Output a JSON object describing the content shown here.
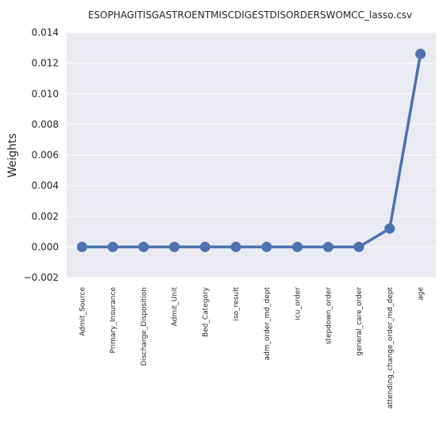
{
  "chart_data": {
    "type": "line",
    "title": "ESOPHAGITISGASTROENTMISCDIGESTDISORDERSWOMCC_lasso.csv",
    "xlabel": "",
    "ylabel": "Weights",
    "categories": [
      "Admit_Source",
      "Primary_Insurance",
      "Discharge_Disposition",
      "Admit_Unit",
      "Bed_Category",
      "iso_result",
      "adm_order_md_dept",
      "icu_order",
      "stepdown_order",
      "general_care_order",
      "attending_change_order_md_dept",
      "age"
    ],
    "values": [
      0.0,
      0.0,
      0.0,
      0.0,
      0.0,
      0.0,
      0.0,
      0.0,
      0.0,
      0.0,
      0.0012,
      0.0126
    ],
    "ylim": [
      -0.002,
      0.014
    ],
    "yticks": [
      "−0.002",
      "0.000",
      "0.002",
      "0.004",
      "0.006",
      "0.008",
      "0.010",
      "0.012",
      "0.014"
    ],
    "grid": true,
    "colors": {
      "line": "#4c72b0",
      "background": "#eaeaf2",
      "grid": "#ffffff"
    }
  }
}
